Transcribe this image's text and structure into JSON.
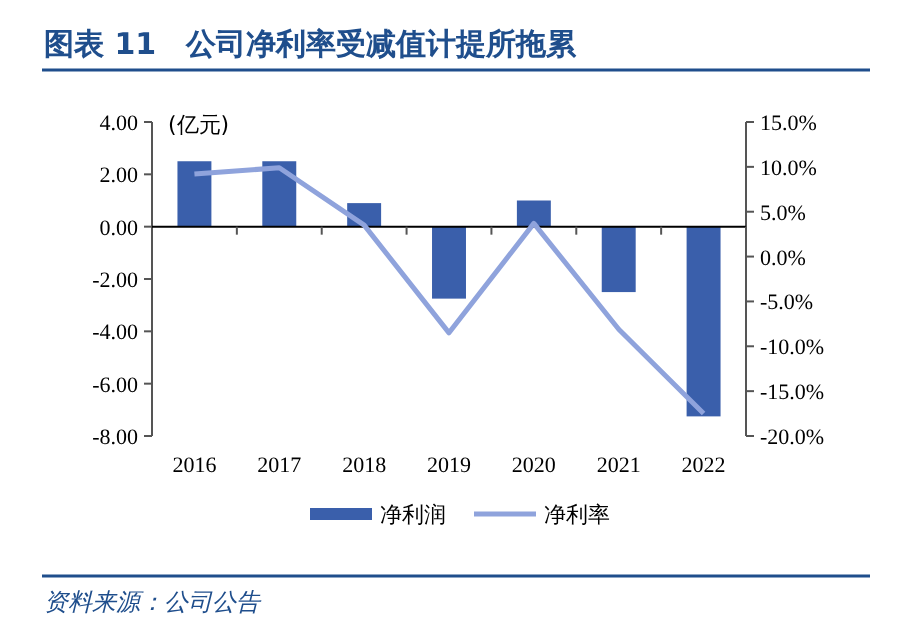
{
  "chart_data": {
    "type": "bar",
    "title": "图表 11　公司净利率受减值计提所拖累",
    "ylabel": "(亿元)",
    "categories": [
      "2016",
      "2017",
      "2018",
      "2019",
      "2020",
      "2021",
      "2022"
    ],
    "series": [
      {
        "name": "净利润",
        "color": "#3a5fab",
        "values": [
          2.5,
          2.5,
          0.9,
          -2.75,
          1.0,
          -2.5,
          -7.25
        ]
      },
      {
        "name": "净利率",
        "type": "line",
        "axis": "y2",
        "color": "#8fa3dc",
        "values": [
          9.2,
          9.9,
          3.5,
          -8.5,
          3.7,
          -8.1,
          -17.5
        ]
      }
    ],
    "ylim": [
      -8,
      4
    ],
    "yticks": [
      {
        "value": -8,
        "label": "-8.00"
      },
      {
        "value": -6,
        "label": "-6.00"
      },
      {
        "value": -4,
        "label": "-4.00"
      },
      {
        "value": -2,
        "label": "-2.00"
      },
      {
        "value": 0,
        "label": "0.00"
      },
      {
        "value": 2,
        "label": "2.00"
      },
      {
        "value": 4,
        "label": "4.00"
      }
    ],
    "y2lim": [
      -20,
      15
    ],
    "y2ticks": [
      {
        "value": -20,
        "label": "-20.0%"
      },
      {
        "value": -15,
        "label": "-15.0%"
      },
      {
        "value": -10,
        "label": "-10.0%"
      },
      {
        "value": -5,
        "label": "-5.0%"
      },
      {
        "value": 0,
        "label": "0.0%"
      },
      {
        "value": 5,
        "label": "5.0%"
      },
      {
        "value": 10,
        "label": "10.0%"
      },
      {
        "value": 15,
        "label": "15.0%"
      }
    ],
    "legend": "bottom",
    "marker": "none",
    "line_style": "solid",
    "annotations": [
      "资料来源：公司公告"
    ]
  }
}
